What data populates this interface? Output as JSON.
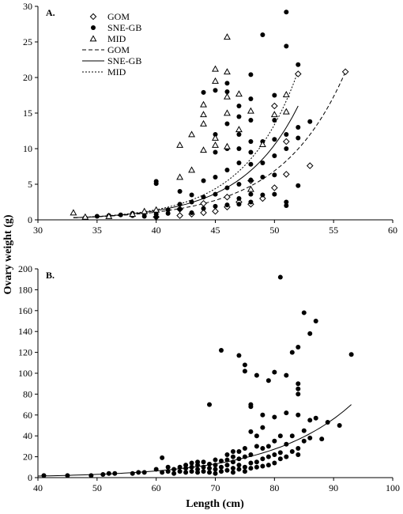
{
  "figure": {
    "ylabel": "Ovary weight (g)",
    "xlabel": "Length (cm)"
  },
  "chart_data": [
    {
      "type": "scatter",
      "panel_label": "A.",
      "xlim": [
        30,
        60
      ],
      "ylim": [
        0,
        30
      ],
      "xticks": [
        30,
        35,
        40,
        45,
        50,
        55,
        60
      ],
      "yticks": [
        0,
        5,
        10,
        15,
        20,
        25,
        30
      ],
      "legend_position": "top-left",
      "series": [
        {
          "name": "GOM",
          "marker": "diamond-open",
          "points": [
            [
              40,
              0.4
            ],
            [
              42,
              0.6
            ],
            [
              43,
              0.8
            ],
            [
              44,
              1.0
            ],
            [
              45,
              1.2
            ],
            [
              46,
              1.8
            ],
            [
              47,
              2.5
            ],
            [
              48,
              2.2
            ],
            [
              49,
              3.0
            ],
            [
              50,
              4.5
            ],
            [
              51,
              6.4
            ],
            [
              51,
              11.0
            ],
            [
              52,
              20.5
            ],
            [
              53,
              7.6
            ],
            [
              56,
              20.8
            ],
            [
              48,
              5.5
            ],
            [
              46,
              3.2
            ],
            [
              50,
              16.0
            ],
            [
              44,
              2.3
            ],
            [
              42,
              1.5
            ]
          ]
        },
        {
          "name": "SNE-GB",
          "marker": "circle-filled",
          "points": [
            [
              34,
              0.3
            ],
            [
              35,
              0.5
            ],
            [
              36,
              0.6
            ],
            [
              37,
              0.7
            ],
            [
              38,
              0.6
            ],
            [
              38,
              0.9
            ],
            [
              39,
              0.5
            ],
            [
              39,
              0.9
            ],
            [
              40,
              0.4
            ],
            [
              40,
              0.8
            ],
            [
              40,
              1.2
            ],
            [
              40,
              5.1
            ],
            [
              40,
              5.4
            ],
            [
              41,
              0.9
            ],
            [
              41,
              1.4
            ],
            [
              42,
              1.5
            ],
            [
              42,
              2.2
            ],
            [
              42,
              4.0
            ],
            [
              43,
              1.0
            ],
            [
              43,
              2.5
            ],
            [
              43,
              3.5
            ],
            [
              44,
              1.6
            ],
            [
              44,
              3.2
            ],
            [
              44,
              5.5
            ],
            [
              44,
              17.9
            ],
            [
              45,
              1.9
            ],
            [
              45,
              3.6
            ],
            [
              45,
              6.0
            ],
            [
              45,
              9.5
            ],
            [
              45,
              12.0
            ],
            [
              45,
              18.2
            ],
            [
              46,
              2.1
            ],
            [
              46,
              4.5
            ],
            [
              46,
              7.0
            ],
            [
              46,
              10.0
            ],
            [
              46,
              13.5
            ],
            [
              46,
              18.0
            ],
            [
              46,
              19.2
            ],
            [
              47,
              2.2
            ],
            [
              47,
              3.0
            ],
            [
              47,
              5.0
            ],
            [
              47,
              8.0
            ],
            [
              47,
              10.0
            ],
            [
              47,
              12.0
            ],
            [
              47,
              14.5
            ],
            [
              47,
              16.0
            ],
            [
              48,
              2.5
            ],
            [
              48,
              3.6
            ],
            [
              48,
              5.6
            ],
            [
              48,
              7.8
            ],
            [
              48,
              9.5
            ],
            [
              48,
              11.0
            ],
            [
              48,
              14.0
            ],
            [
              48,
              17.0
            ],
            [
              48,
              20.4
            ],
            [
              49,
              3.5
            ],
            [
              49,
              6.0
            ],
            [
              49,
              8.0
            ],
            [
              49,
              11.0
            ],
            [
              49,
              26.0
            ],
            [
              50,
              3.6
            ],
            [
              50,
              6.3
            ],
            [
              50,
              9.0
            ],
            [
              50,
              11.3
            ],
            [
              50,
              14.0
            ],
            [
              50,
              17.5
            ],
            [
              51,
              2.0
            ],
            [
              51,
              2.5
            ],
            [
              51,
              10.0
            ],
            [
              51,
              12.0
            ],
            [
              51,
              24.4
            ],
            [
              51,
              29.2
            ],
            [
              52,
              4.8
            ],
            [
              52,
              11.5
            ],
            [
              52,
              13.0
            ],
            [
              52,
              21.8
            ],
            [
              53,
              13.8
            ]
          ]
        },
        {
          "name": "MID",
          "marker": "triangle-open",
          "points": [
            [
              33,
              1.0
            ],
            [
              34,
              0.4
            ],
            [
              36,
              0.5
            ],
            [
              38,
              0.8
            ],
            [
              39,
              1.2
            ],
            [
              40,
              1.4
            ],
            [
              42,
              10.5
            ],
            [
              42,
              6.0
            ],
            [
              43,
              12.0
            ],
            [
              43,
              7.0
            ],
            [
              44,
              13.5
            ],
            [
              44,
              14.8
            ],
            [
              44,
              16.2
            ],
            [
              44,
              9.8
            ],
            [
              45,
              21.2
            ],
            [
              45,
              19.5
            ],
            [
              45,
              11.5
            ],
            [
              45,
              10.5
            ],
            [
              46,
              25.7
            ],
            [
              46,
              20.8
            ],
            [
              46,
              17.3
            ],
            [
              46,
              15.0
            ],
            [
              46,
              10.3
            ],
            [
              47,
              12.7
            ],
            [
              47,
              17.7
            ],
            [
              48,
              15.3
            ],
            [
              48,
              4.3
            ],
            [
              49,
              10.6
            ],
            [
              50,
              14.8
            ],
            [
              51,
              17.6
            ],
            [
              51,
              15.2
            ]
          ]
        }
      ],
      "fits": [
        {
          "name": "GOM",
          "style": "dashed",
          "range": [
            33,
            56
          ],
          "y_at_start": 0.3,
          "y_at_end": 20.8
        },
        {
          "name": "SNE-GB",
          "style": "solid",
          "range": [
            33,
            52
          ],
          "y_at_start": 0.3,
          "y_at_end": 16.0
        },
        {
          "name": "MID",
          "style": "dotted",
          "range": [
            33,
            52
          ],
          "y_at_start": 0.3,
          "y_at_end": 20.9
        }
      ]
    },
    {
      "type": "scatter",
      "panel_label": "B.",
      "xlim": [
        40,
        100
      ],
      "ylim": [
        0,
        200
      ],
      "xticks": [
        40,
        50,
        60,
        70,
        80,
        90,
        100
      ],
      "yticks": [
        0,
        20,
        40,
        60,
        80,
        100,
        120,
        140,
        160,
        180,
        200
      ],
      "series": [
        {
          "marker": "circle-filled",
          "points": [
            [
              41,
              2
            ],
            [
              45,
              2
            ],
            [
              49,
              2
            ],
            [
              51,
              3
            ],
            [
              52,
              4
            ],
            [
              53,
              4
            ],
            [
              56,
              4
            ],
            [
              57,
              5
            ],
            [
              58,
              5
            ],
            [
              60,
              8
            ],
            [
              61,
              19
            ],
            [
              61,
              5
            ],
            [
              62,
              6
            ],
            [
              62,
              10
            ],
            [
              63,
              4
            ],
            [
              63,
              8
            ],
            [
              64,
              6
            ],
            [
              64,
              10
            ],
            [
              65,
              5
            ],
            [
              65,
              9
            ],
            [
              65,
              12
            ],
            [
              66,
              6
            ],
            [
              66,
              10
            ],
            [
              66,
              14
            ],
            [
              67,
              5
            ],
            [
              67,
              8
            ],
            [
              67,
              12
            ],
            [
              67,
              15
            ],
            [
              68,
              6
            ],
            [
              68,
              10
            ],
            [
              68,
              15
            ],
            [
              69,
              5
            ],
            [
              69,
              9
            ],
            [
              69,
              13
            ],
            [
              69,
              70
            ],
            [
              70,
              4
            ],
            [
              70,
              8
            ],
            [
              70,
              12
            ],
            [
              70,
              17
            ],
            [
              71,
              6
            ],
            [
              71,
              10
            ],
            [
              71,
              16
            ],
            [
              71,
              122
            ],
            [
              72,
              7
            ],
            [
              72,
              12
            ],
            [
              72,
              17
            ],
            [
              72,
              22
            ],
            [
              73,
              5
            ],
            [
              73,
              9
            ],
            [
              73,
              15
            ],
            [
              73,
              20
            ],
            [
              73,
              25
            ],
            [
              74,
              8
            ],
            [
              74,
              12
            ],
            [
              74,
              18
            ],
            [
              74,
              25
            ],
            [
              74,
              117
            ],
            [
              75,
              6
            ],
            [
              75,
              10
            ],
            [
              75,
              20
            ],
            [
              75,
              28
            ],
            [
              75,
              102
            ],
            [
              75,
              108
            ],
            [
              76,
              9
            ],
            [
              76,
              14
            ],
            [
              76,
              22
            ],
            [
              76,
              44
            ],
            [
              76,
              68
            ],
            [
              76,
              70
            ],
            [
              77,
              10
            ],
            [
              77,
              15
            ],
            [
              77,
              30
            ],
            [
              77,
              40
            ],
            [
              77,
              98
            ],
            [
              78,
              11
            ],
            [
              78,
              18
            ],
            [
              78,
              28
            ],
            [
              78,
              48
            ],
            [
              78,
              60
            ],
            [
              79,
              12
            ],
            [
              79,
              20
            ],
            [
              79,
              30
            ],
            [
              79,
              93
            ],
            [
              80,
              14
            ],
            [
              80,
              22
            ],
            [
              80,
              35
            ],
            [
              80,
              58
            ],
            [
              80,
              101
            ],
            [
              81,
              18
            ],
            [
              81,
              24
            ],
            [
              81,
              192
            ],
            [
              81,
              40
            ],
            [
              82,
              20
            ],
            [
              82,
              32
            ],
            [
              82,
              62
            ],
            [
              82,
              98
            ],
            [
              83,
              25
            ],
            [
              83,
              40
            ],
            [
              83,
              120
            ],
            [
              84,
              22
            ],
            [
              84,
              28
            ],
            [
              84,
              60
            ],
            [
              84,
              80
            ],
            [
              84,
              85
            ],
            [
              84,
              90
            ],
            [
              84,
              125
            ],
            [
              85,
              35
            ],
            [
              85,
              45
            ],
            [
              85,
              158
            ],
            [
              86,
              38
            ],
            [
              86,
              55
            ],
            [
              86,
              138
            ],
            [
              87,
              57
            ],
            [
              87,
              150
            ],
            [
              88,
              37
            ],
            [
              89,
              53
            ],
            [
              91,
              50
            ],
            [
              93,
              118
            ]
          ]
        }
      ],
      "fits": [
        {
          "style": "solid",
          "range": [
            40,
            93
          ],
          "y_at_start": 1.5,
          "y_at_end": 70
        }
      ]
    }
  ]
}
